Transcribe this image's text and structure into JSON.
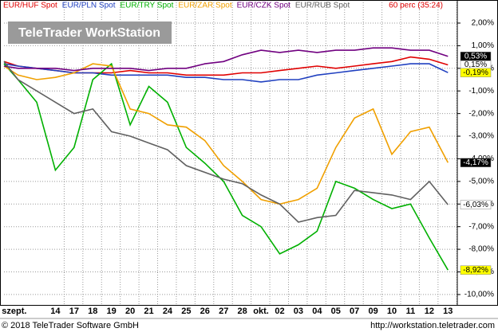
{
  "chart_data": {
    "type": "line",
    "watermark": "TeleTrader WorkStation",
    "period_label": "60 perc (35:24)",
    "copyright": "© 2018 TeleTrader Software GmbH",
    "url": "http://workstation.teletrader.com",
    "x": [
      -2.75,
      -2,
      -1,
      0,
      1,
      2,
      3,
      4,
      5,
      6,
      7,
      8,
      9,
      10,
      11,
      12,
      13,
      14,
      15,
      16,
      17,
      18,
      19,
      20,
      21
    ],
    "xlim": [
      -2.75,
      21.5
    ],
    "xticks": [
      {
        "value": -2.2,
        "label": "szept."
      },
      {
        "value": 0,
        "label": "14"
      },
      {
        "value": 1,
        "label": "17"
      },
      {
        "value": 2,
        "label": "18"
      },
      {
        "value": 3,
        "label": "19"
      },
      {
        "value": 4,
        "label": "20"
      },
      {
        "value": 5,
        "label": "21"
      },
      {
        "value": 6,
        "label": "24"
      },
      {
        "value": 7,
        "label": "25"
      },
      {
        "value": 8,
        "label": "26"
      },
      {
        "value": 9,
        "label": "27"
      },
      {
        "value": 10,
        "label": "28"
      },
      {
        "value": 11,
        "label": "okt."
      },
      {
        "value": 12,
        "label": "02"
      },
      {
        "value": 13,
        "label": "03"
      },
      {
        "value": 14,
        "label": "04"
      },
      {
        "value": 15,
        "label": "05"
      },
      {
        "value": 16,
        "label": "07"
      },
      {
        "value": 17,
        "label": "09"
      },
      {
        "value": 18,
        "label": "10"
      },
      {
        "value": 19,
        "label": "11"
      },
      {
        "value": 20,
        "label": "12"
      },
      {
        "value": 21,
        "label": "13"
      }
    ],
    "ylim": [
      -10.46,
      3.02
    ],
    "yticks": [
      {
        "value": 2,
        "label": "2,00%"
      },
      {
        "value": 1,
        "label": "1,00%"
      },
      {
        "value": 0,
        "label": "0,00%"
      },
      {
        "value": -1,
        "label": "-1,00%"
      },
      {
        "value": -2,
        "label": "-2,00%"
      },
      {
        "value": -3,
        "label": "-3,00%"
      },
      {
        "value": -4,
        "label": "-4,00%"
      },
      {
        "value": -5,
        "label": "-5,00%"
      },
      {
        "value": -6,
        "label": "-6,00%"
      },
      {
        "value": -7,
        "label": "-7,00%"
      },
      {
        "value": -8,
        "label": "-8,00%"
      },
      {
        "value": -9,
        "label": "-9,00%"
      },
      {
        "value": -10,
        "label": "-10,00%"
      }
    ],
    "grid": true,
    "series": [
      {
        "name": "EUR/HUF Spot",
        "color": "#e00000",
        "label_bg": "#ffffff",
        "label_fg": "#000000",
        "values": [
          0.3,
          0.1,
          0,
          -0.1,
          -0.2,
          -0.2,
          -0.2,
          -0.1,
          -0.2,
          -0.2,
          -0.3,
          -0.3,
          -0.3,
          -0.2,
          -0.2,
          -0.1,
          0,
          0.1,
          0,
          0.1,
          0.2,
          0.3,
          0.5,
          0.4,
          0.15
        ],
        "value_labels": [
          null,
          null,
          null,
          null,
          null,
          null,
          null,
          null,
          null,
          null,
          null,
          null,
          null,
          null,
          null,
          null,
          null,
          null,
          null,
          null,
          null,
          null,
          null,
          null,
          "0,15%"
        ]
      },
      {
        "name": "EUR/PLN Spot",
        "color": "#2040c0",
        "label_bg": "#ffff00",
        "label_fg": "#000000",
        "values": [
          0.2,
          0.1,
          0,
          -0.1,
          -0.2,
          -0.2,
          -0.3,
          -0.3,
          -0.3,
          -0.3,
          -0.4,
          -0.4,
          -0.5,
          -0.5,
          -0.6,
          -0.5,
          -0.5,
          -0.3,
          -0.2,
          -0.1,
          0,
          0.1,
          0.2,
          0.2,
          -0.19
        ],
        "value_labels": [
          null,
          null,
          null,
          null,
          null,
          null,
          null,
          null,
          null,
          null,
          null,
          null,
          null,
          null,
          null,
          null,
          null,
          null,
          null,
          null,
          null,
          null,
          null,
          null,
          "-0,19%"
        ]
      },
      {
        "name": "EUR/TRY Spot",
        "color": "#00b000",
        "label_bg": "#ffff00",
        "label_fg": "#000000",
        "values": [
          0.2,
          -0.5,
          -1.5,
          -4.5,
          -3.5,
          -0.5,
          0.2,
          -2.5,
          -0.8,
          -1.5,
          -3.5,
          -4.2,
          -5.0,
          -6.5,
          -7.0,
          -8.2,
          -7.8,
          -7.2,
          -5.0,
          -5.3,
          -5.8,
          -6.2,
          -6.0,
          -7.5,
          -8.92
        ],
        "value_labels": [
          null,
          null,
          null,
          null,
          null,
          null,
          null,
          null,
          null,
          null,
          null,
          null,
          null,
          null,
          null,
          null,
          null,
          null,
          null,
          null,
          null,
          null,
          null,
          null,
          "-8,92%"
        ]
      },
      {
        "name": "EUR/ZAR Spot",
        "color": "#f0a000",
        "label_bg": "#000000",
        "label_fg": "#ffffff",
        "values": [
          0.1,
          -0.3,
          -0.5,
          -0.4,
          -0.2,
          0.2,
          0.1,
          -1.8,
          -2.0,
          -2.5,
          -2.6,
          -3.2,
          -4.3,
          -5.0,
          -5.8,
          -6.0,
          -5.8,
          -5.3,
          -3.5,
          -2.2,
          -1.8,
          -3.8,
          -2.8,
          -2.6,
          -4.17
        ],
        "value_labels": [
          null,
          null,
          null,
          null,
          null,
          null,
          null,
          null,
          null,
          null,
          null,
          null,
          null,
          null,
          null,
          null,
          null,
          null,
          null,
          null,
          null,
          null,
          null,
          null,
          "-4,17%"
        ]
      },
      {
        "name": "EUR/CZK Spot",
        "color": "#700080",
        "label_bg": "#000000",
        "label_fg": "#ffffff",
        "values": [
          0.1,
          0,
          0,
          0,
          -0.1,
          0,
          0,
          0,
          -0.1,
          0,
          0,
          0.2,
          0.3,
          0.6,
          0.8,
          0.7,
          0.8,
          0.7,
          0.8,
          0.8,
          0.9,
          0.9,
          0.8,
          0.8,
          0.53
        ],
        "value_labels": [
          null,
          null,
          null,
          null,
          null,
          null,
          null,
          null,
          null,
          null,
          null,
          null,
          null,
          null,
          null,
          null,
          null,
          null,
          null,
          null,
          null,
          null,
          null,
          null,
          "0,53%"
        ]
      },
      {
        "name": "EUR/RUB Spot",
        "color": "#606060",
        "label_bg": "#ffffff",
        "label_fg": "#000000",
        "values": [
          0.3,
          -0.5,
          -1.0,
          -1.5,
          -2.0,
          -1.8,
          -2.8,
          -3.0,
          -3.3,
          -3.6,
          -4.3,
          -4.6,
          -4.9,
          -5.1,
          -5.6,
          -6.0,
          -6.8,
          -6.6,
          -6.5,
          -5.4,
          -5.5,
          -5.6,
          -5.8,
          -5.0,
          -6.03
        ],
        "value_labels": [
          null,
          null,
          null,
          null,
          null,
          null,
          null,
          null,
          null,
          null,
          null,
          null,
          null,
          null,
          null,
          null,
          null,
          null,
          null,
          null,
          null,
          null,
          null,
          null,
          "-6,03%"
        ]
      }
    ]
  }
}
